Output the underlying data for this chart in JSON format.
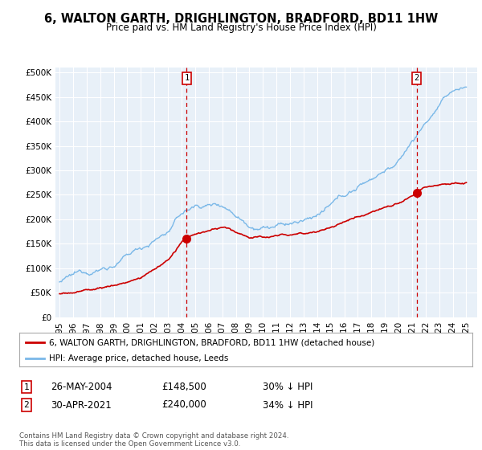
{
  "title": "6, WALTON GARTH, DRIGHLINGTON, BRADFORD, BD11 1HW",
  "subtitle": "Price paid vs. HM Land Registry's House Price Index (HPI)",
  "bg_color": "#e8f0f8",
  "grid_color": "#ffffff",
  "hpi_color": "#7ab8e8",
  "price_color": "#cc0000",
  "vline_color": "#cc0000",
  "marker1_year": 2004.38,
  "marker2_year": 2021.33,
  "marker1_price": 148500,
  "marker2_price": 240000,
  "yticks": [
    0,
    50000,
    100000,
    150000,
    200000,
    250000,
    300000,
    350000,
    400000,
    450000,
    500000
  ],
  "xlabel_years": [
    1995,
    1996,
    1997,
    1998,
    1999,
    2000,
    2001,
    2002,
    2003,
    2004,
    2005,
    2006,
    2007,
    2008,
    2009,
    2010,
    2011,
    2012,
    2013,
    2014,
    2015,
    2016,
    2017,
    2018,
    2019,
    2020,
    2021,
    2022,
    2023,
    2024,
    2025
  ],
  "legend_line1": "6, WALTON GARTH, DRIGHLINGTON, BRADFORD, BD11 1HW (detached house)",
  "legend_line2": "HPI: Average price, detached house, Leeds",
  "annotation1_label": "1",
  "annotation1_date": "26-MAY-2004",
  "annotation1_price": "£148,500",
  "annotation1_pct": "30% ↓ HPI",
  "annotation2_label": "2",
  "annotation2_date": "30-APR-2021",
  "annotation2_price": "£240,000",
  "annotation2_pct": "34% ↓ HPI",
  "footer": "Contains HM Land Registry data © Crown copyright and database right 2024.\nThis data is licensed under the Open Government Licence v3.0."
}
